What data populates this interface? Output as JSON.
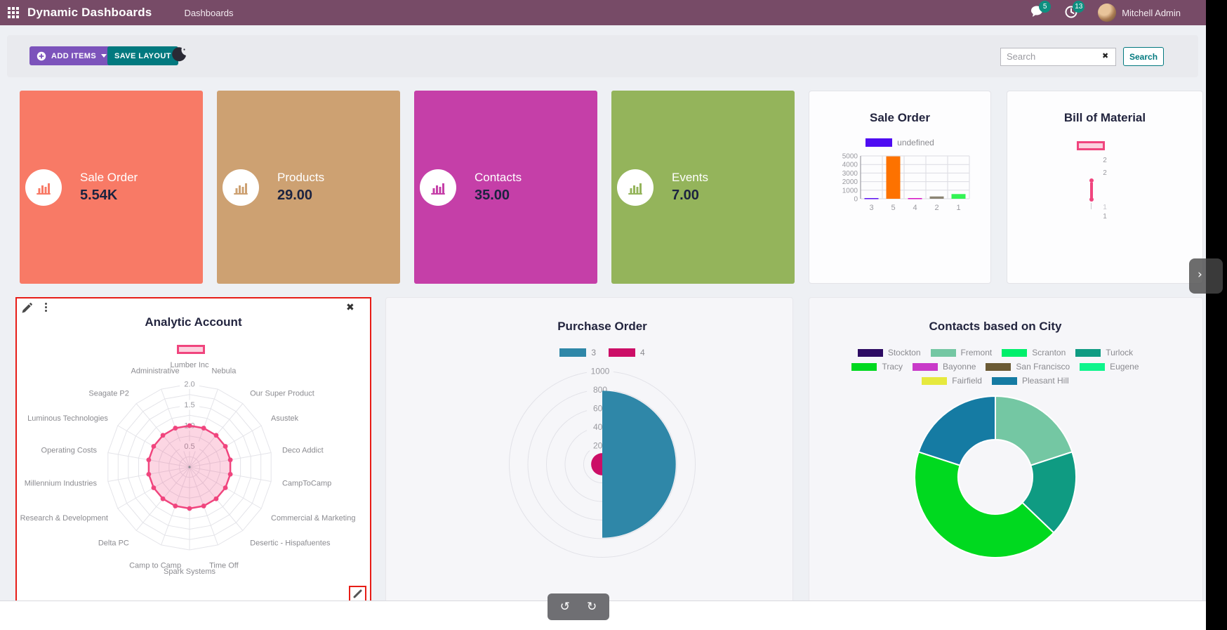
{
  "header": {
    "app_title": "Dynamic Dashboards",
    "menu_item": "Dashboards",
    "messages_badge": "5",
    "activities_badge": "13",
    "user_name": "Mitchell Admin"
  },
  "toolbar": {
    "add_items_label": "ADD ITEMS",
    "save_layout_label": "SAVE LAYOUT",
    "search_placeholder": "Search",
    "search_button_label": "Search",
    "clear_icon": "✖"
  },
  "tiles": [
    {
      "label": "Sale Order",
      "value": "5.54K",
      "color": "#f87a66"
    },
    {
      "label": "Products",
      "value": "29.00",
      "color": "#cda172"
    },
    {
      "label": "Contacts",
      "value": "35.00",
      "color": "#c53fa8"
    },
    {
      "label": "Events",
      "value": "7.00",
      "color": "#94b45b"
    }
  ],
  "chart_data": [
    {
      "id": "sale_order_bar",
      "type": "bar",
      "title": "Sale Order",
      "legend": [
        {
          "label": "undefined",
          "color": "#4e0cf2"
        }
      ],
      "legend_position": "top",
      "categories": [
        "3",
        "5",
        "4",
        "2",
        "1"
      ],
      "values": [
        80,
        4950,
        80,
        270,
        550
      ],
      "bar_colors": [
        "#5a10f0",
        "#fd7200",
        "#d511c4",
        "#8b8473",
        "#33f454"
      ],
      "ylim": [
        0,
        5000
      ],
      "yticks": [
        0,
        1000,
        2000,
        3000,
        4000,
        5000
      ],
      "grid": true
    },
    {
      "id": "bill_of_material_radar",
      "type": "radar",
      "title": "Bill of Material",
      "note": "radar collapsed to zero width; only axis values visible",
      "visible_axis_values": [
        "2",
        "2",
        "1",
        "1"
      ],
      "line_color": "#f0457e",
      "legend_swatch": {
        "border": "#f0457e",
        "fill": "#fbd2df"
      }
    },
    {
      "id": "analytic_account_radar",
      "type": "radar",
      "title": "Analytic Account",
      "axes": [
        "Lumber Inc",
        "Nebula",
        "Our Super Product",
        "Asustek",
        "Deco Addict",
        "CampToCamp",
        "Commercial & Marketing",
        "Desertic - Hispafuentes",
        "Time Off",
        "Spark Systems",
        "Camp to Camp",
        "Delta PC",
        "Research & Development",
        "Millennium Industries",
        "Operating Costs",
        "Luminous Technologies",
        "Seagate P2",
        "Administrative"
      ],
      "values": [
        1,
        1,
        1,
        1,
        1,
        1,
        1,
        1,
        1,
        1,
        1,
        1,
        1,
        1,
        1,
        1,
        1,
        1
      ],
      "rmax": 2,
      "rticks": [
        0.5,
        1.0,
        1.5,
        2.0
      ],
      "line_color": "#f0457e",
      "fill_color": "rgba(240,69,126,0.22)"
    },
    {
      "id": "purchase_order_polar",
      "type": "polarArea",
      "title": "Purchase Order",
      "segments": [
        {
          "label": "3",
          "value": 790,
          "color": "#2f87a8"
        },
        {
          "label": "4",
          "value": 120,
          "color": "#cc0e67"
        }
      ],
      "rticks": [
        200,
        400,
        600,
        800,
        1000
      ],
      "rmax": 1000
    },
    {
      "id": "contacts_city_doughnut",
      "type": "doughnut",
      "title": "Contacts based on City",
      "legend_rows": [
        [
          "Stockton",
          "Fremont",
          "Scranton",
          "Turlock"
        ],
        [
          "Tracy",
          "Bayonne",
          "San Francisco",
          "Eugene"
        ],
        [
          "Fairfield",
          "Pleasant Hill"
        ]
      ],
      "legend_colors": {
        "Stockton": "#2d0b63",
        "Fremont": "#74c7a3",
        "Scranton": "#00ef6b",
        "Turlock": "#0f9b82",
        "Tracy": "#00d91f",
        "Bayonne": "#c93ac9",
        "San Francisco": "#6b5b35",
        "Eugene": "#0ef58c",
        "Fairfield": "#e6e93e",
        "Pleasant Hill": "#157ba3"
      },
      "segments": [
        {
          "label": "Fremont",
          "value": 7
        },
        {
          "label": "Turlock",
          "value": 6
        },
        {
          "label": "Tracy",
          "value": 15
        },
        {
          "label": "Pleasant Hill",
          "value": 7
        }
      ],
      "total": 35
    }
  ],
  "footer": {
    "undo_icon": "↺",
    "redo_icon": "↻"
  },
  "side_tab": {
    "chevron": "›"
  }
}
